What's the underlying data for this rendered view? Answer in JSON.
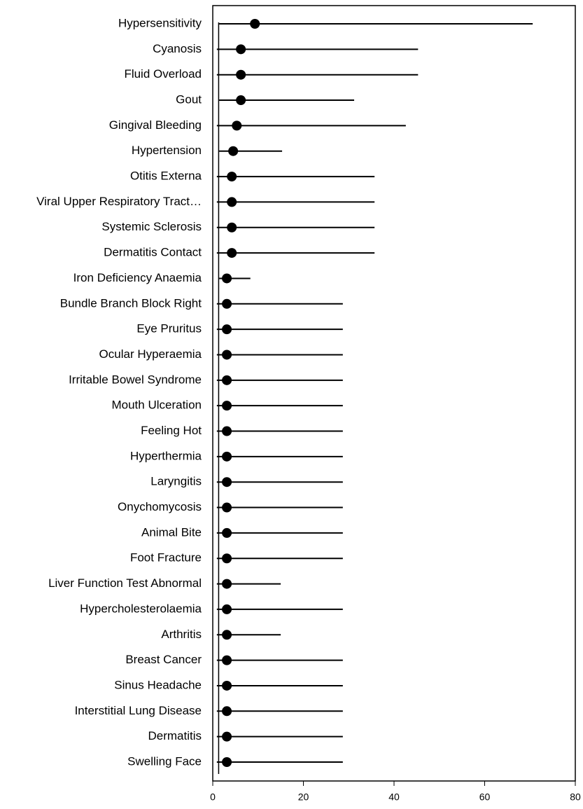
{
  "chart_data": {
    "type": "forest",
    "categories": [
      "Hypersensitivity",
      "Cyanosis",
      "Fluid Overload",
      "Gout",
      "Gingival Bleeding",
      "Hypertension",
      "Otitis Externa",
      "Viral Upper Respiratory Tract…",
      "Systemic Sclerosis",
      "Dermatitis Contact",
      "Iron Deficiency Anaemia",
      "Bundle Branch Block Right",
      "Eye Pruritus",
      "Ocular Hyperaemia",
      "Irritable Bowel Syndrome",
      "Mouth Ulceration",
      "Feeling Hot",
      "Hyperthermia",
      "Laryngitis",
      "Onychomycosis",
      "Animal Bite",
      "Foot Fracture",
      "Liver Function Test Abnormal",
      "Hypercholesterolaemia",
      "Arthritis",
      "Breast Cancer",
      "Sinus Headache",
      "Interstitial Lung Disease",
      "Dermatitis",
      "Swelling Face"
    ],
    "values": [
      9.3,
      6.2,
      6.2,
      6.2,
      5.3,
      4.5,
      4.2,
      4.2,
      4.2,
      4.2,
      3.1,
      3.1,
      3.1,
      3.1,
      3.1,
      3.1,
      3.1,
      3.1,
      3.1,
      3.1,
      3.1,
      3.1,
      3.1,
      3.1,
      3.1,
      3.1,
      3.1,
      3.1,
      3.1,
      3.1
    ],
    "lower": [
      1.4,
      0.9,
      0.9,
      1.4,
      0.9,
      1.4,
      0.9,
      0.9,
      0.9,
      0.9,
      1.4,
      0.9,
      0.9,
      0.9,
      0.9,
      0.9,
      0.9,
      0.9,
      0.9,
      0.9,
      0.9,
      0.9,
      0.9,
      0.9,
      0.9,
      0.9,
      0.9,
      0.9,
      0.9,
      0.9
    ],
    "upper": [
      70.6,
      45.3,
      45.3,
      31.2,
      42.6,
      15.3,
      35.7,
      35.7,
      35.7,
      35.7,
      8.3,
      28.7,
      28.7,
      28.7,
      28.7,
      28.7,
      28.7,
      28.7,
      28.7,
      28.7,
      28.7,
      28.7,
      15.0,
      28.7,
      15.0,
      28.7,
      28.7,
      28.7,
      28.7,
      28.7
    ],
    "reference_line": 1.3,
    "color": "#000000",
    "xlim": [
      0,
      80
    ],
    "xticks": [
      0,
      20,
      40,
      60,
      80
    ]
  }
}
